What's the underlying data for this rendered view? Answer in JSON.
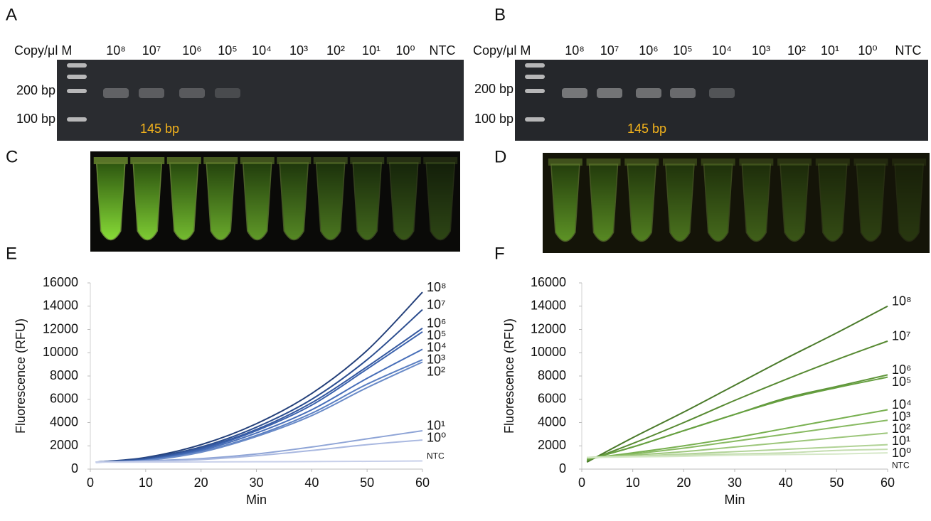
{
  "panels": {
    "A": {
      "letter": "A",
      "header": "Copy/μl M",
      "lanes": [
        "10⁸",
        "10⁷",
        "10⁶",
        "10⁵",
        "10⁴",
        "10³",
        "10²",
        "10¹",
        "10⁰",
        "NTC"
      ],
      "markers": [
        "200 bp",
        "100 bp"
      ],
      "product": "145 bp"
    },
    "B": {
      "letter": "B",
      "header": "Copy/μl M",
      "lanes": [
        "10⁸",
        "10⁷",
        "10⁶",
        "10⁵",
        "10⁴",
        "10³",
        "10²",
        "10¹",
        "10⁰",
        "NTC"
      ],
      "markers": [
        "200 bp",
        "100 bp"
      ],
      "product": "145 bp"
    },
    "C": {
      "letter": "C"
    },
    "D": {
      "letter": "D"
    }
  },
  "chart_data": [
    {
      "type": "line",
      "panel_label": "E",
      "x_label": "Min",
      "y_label": "Fluorescence (RFU)",
      "x": [
        1,
        10,
        20,
        30,
        40,
        50,
        60
      ],
      "xlim": [
        0,
        60
      ],
      "xticks": [
        0,
        10,
        20,
        30,
        40,
        50,
        60
      ],
      "ylim": [
        0,
        16000
      ],
      "yticks": [
        0,
        2000,
        4000,
        6000,
        8000,
        10000,
        12000,
        14000,
        16000
      ],
      "series": [
        {
          "name": "10⁸",
          "color": "#24407a",
          "values": [
            600,
            1000,
            2100,
            3900,
            6500,
            10200,
            15200
          ]
        },
        {
          "name": "10⁷",
          "color": "#2b4d8f",
          "values": [
            600,
            950,
            1900,
            3600,
            6000,
            9400,
            13700
          ]
        },
        {
          "name": "10⁶",
          "color": "#3458a0",
          "values": [
            600,
            850,
            1800,
            3400,
            5700,
            8800,
            12100
          ]
        },
        {
          "name": "10⁵",
          "color": "#3b62ad",
          "values": [
            600,
            820,
            1700,
            3300,
            5500,
            8600,
            11800
          ]
        },
        {
          "name": "10⁴",
          "color": "#476eb8",
          "values": [
            600,
            780,
            1600,
            3100,
            5100,
            7800,
            10300
          ]
        },
        {
          "name": "10³",
          "color": "#5a7fc2",
          "values": [
            600,
            750,
            1500,
            2900,
            4800,
            7300,
            9400
          ]
        },
        {
          "name": "10²",
          "color": "#6a8bc8",
          "values": [
            600,
            740,
            1450,
            2800,
            4600,
            7000,
            9200
          ]
        },
        {
          "name": "10¹",
          "color": "#8ea4d6",
          "values": [
            600,
            700,
            900,
            1300,
            1900,
            2600,
            3300
          ]
        },
        {
          "name": "10⁰",
          "color": "#a9b8e0",
          "values": [
            600,
            680,
            820,
            1150,
            1600,
            2100,
            2500
          ]
        },
        {
          "name": "NTC",
          "color": "#c8d0ea",
          "values": [
            600,
            600,
            620,
            630,
            650,
            670,
            700
          ]
        }
      ]
    },
    {
      "type": "line",
      "panel_label": "F",
      "x_label": "Min",
      "y_label": "Fluorescence (RFU)",
      "x": [
        1,
        10,
        20,
        30,
        40,
        50,
        60
      ],
      "xlim": [
        0,
        60
      ],
      "xticks": [
        0,
        10,
        20,
        30,
        40,
        50,
        60
      ],
      "ylim": [
        0,
        16000
      ],
      "yticks": [
        0,
        2000,
        4000,
        6000,
        8000,
        10000,
        12000,
        14000,
        16000
      ],
      "series": [
        {
          "name": "10⁸",
          "color": "#4a7a2a",
          "values": [
            600,
            2700,
            4900,
            7200,
            9500,
            11700,
            14000
          ]
        },
        {
          "name": "10⁷",
          "color": "#578a32",
          "values": [
            700,
            2200,
            4000,
            5900,
            7700,
            9400,
            11000
          ]
        },
        {
          "name": "10⁶",
          "color": "#5f953a",
          "values": [
            800,
            1900,
            3300,
            4700,
            6100,
            7100,
            8100
          ]
        },
        {
          "name": "10⁵",
          "color": "#66a040",
          "values": [
            800,
            1900,
            3300,
            4700,
            6000,
            7000,
            7900
          ]
        },
        {
          "name": "10⁴",
          "color": "#78b050",
          "values": [
            900,
            1400,
            2000,
            2700,
            3500,
            4300,
            5100
          ]
        },
        {
          "name": "10³",
          "color": "#88ba62",
          "values": [
            900,
            1300,
            1800,
            2400,
            3000,
            3600,
            4200
          ]
        },
        {
          "name": "10²",
          "color": "#9cc67a",
          "values": [
            1000,
            1200,
            1500,
            1900,
            2300,
            2700,
            3100
          ]
        },
        {
          "name": "10¹",
          "color": "#b0d295",
          "values": [
            1000,
            1100,
            1300,
            1500,
            1700,
            1900,
            2100
          ]
        },
        {
          "name": "10⁰",
          "color": "#c4ddaf",
          "values": [
            1000,
            1100,
            1200,
            1300,
            1400,
            1600,
            1700
          ]
        },
        {
          "name": "NTC",
          "color": "#d6e8c8",
          "values": [
            1000,
            1050,
            1100,
            1200,
            1250,
            1300,
            1400
          ]
        }
      ]
    }
  ]
}
